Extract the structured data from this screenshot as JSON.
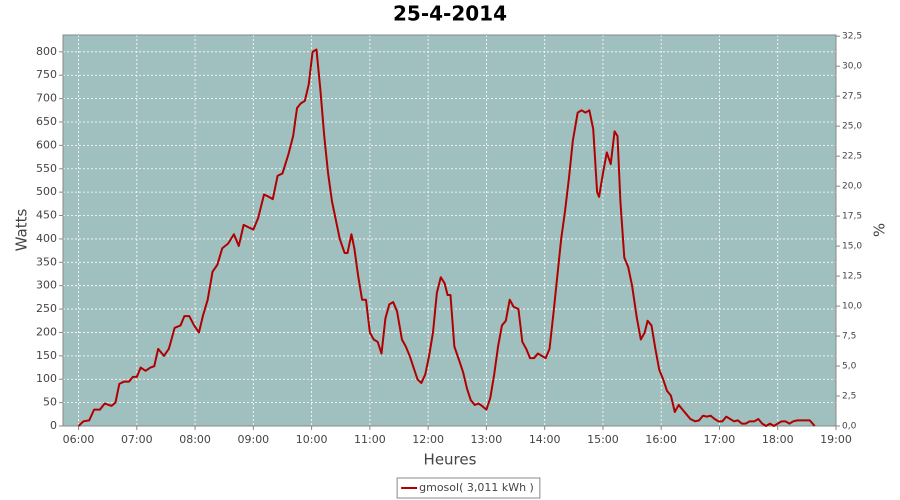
{
  "chart_data": {
    "type": "line",
    "title": "25-4-2014",
    "xlabel": "Heures",
    "ylabel": "Watts",
    "y2label": "%",
    "xlim": [
      "05:44",
      "19:00"
    ],
    "xticks": [
      "06:00",
      "07:00",
      "08:00",
      "09:00",
      "10:00",
      "11:00",
      "12:00",
      "13:00",
      "14:00",
      "15:00",
      "16:00",
      "17:00",
      "18:00",
      "19:00"
    ],
    "ylim": [
      0,
      836
    ],
    "yticks": [
      0,
      50,
      100,
      150,
      200,
      250,
      300,
      350,
      400,
      450,
      500,
      550,
      600,
      650,
      700,
      750,
      800
    ],
    "y2lim": [
      0,
      32.6
    ],
    "y2ticks": [
      {
        "value": 0,
        "label": "0,0"
      },
      {
        "value": 2.5,
        "label": "2,5"
      },
      {
        "value": 5,
        "label": "5,0"
      },
      {
        "value": 7.5,
        "label": "7,5"
      },
      {
        "value": 10,
        "label": "10,0"
      },
      {
        "value": 12.5,
        "label": "12,5"
      },
      {
        "value": 15,
        "label": "15,0"
      },
      {
        "value": 17.5,
        "label": "17,5"
      },
      {
        "value": 20,
        "label": "20,0"
      },
      {
        "value": 22.5,
        "label": "22,5"
      },
      {
        "value": 25,
        "label": "25,0"
      },
      {
        "value": 27.5,
        "label": "27,5"
      },
      {
        "value": 30,
        "label": "30,0"
      },
      {
        "value": 32.5,
        "label": "32,5"
      }
    ],
    "grid": true,
    "legend": "bottom",
    "background": "#a0c0bf",
    "x": [
      "06:00",
      "06:05",
      "06:11",
      "06:16",
      "06:22",
      "06:27",
      "06:34",
      "06:38",
      "06:42",
      "06:47",
      "06:52",
      "06:56",
      "07:00",
      "07:04",
      "07:09",
      "07:14",
      "07:18",
      "07:22",
      "07:28",
      "07:33",
      "07:39",
      "07:45",
      "07:49",
      "07:54",
      "07:59",
      "08:04",
      "08:08",
      "08:13",
      "08:18",
      "08:23",
      "08:28",
      "08:34",
      "08:40",
      "08:45",
      "08:50",
      "08:55",
      "09:00",
      "09:05",
      "09:11",
      "09:16",
      "09:20",
      "09:25",
      "09:30",
      "09:36",
      "09:41",
      "09:45",
      "09:49",
      "09:53",
      "09:57",
      "10:01",
      "10:05",
      "10:09",
      "10:13",
      "10:17",
      "10:21",
      "10:25",
      "10:29",
      "10:34",
      "10:37",
      "10:41",
      "10:44",
      "10:48",
      "10:52",
      "10:56",
      "11:00",
      "11:04",
      "11:08",
      "11:12",
      "11:16",
      "11:20",
      "11:24",
      "11:28",
      "11:33",
      "11:37",
      "11:41",
      "11:45",
      "11:49",
      "11:53",
      "11:57",
      "12:01",
      "12:05",
      "12:09",
      "12:13",
      "12:17",
      "12:20",
      "12:23",
      "12:27",
      "12:32",
      "12:36",
      "12:40",
      "12:44",
      "12:48",
      "12:52",
      "12:56",
      "13:00",
      "13:04",
      "13:08",
      "13:12",
      "13:16",
      "13:20",
      "13:24",
      "13:28",
      "13:33",
      "13:37",
      "13:41",
      "13:45",
      "13:49",
      "13:53",
      "13:57",
      "14:01",
      "14:05",
      "14:09",
      "14:13",
      "14:17",
      "14:21",
      "14:25",
      "14:29",
      "14:34",
      "14:38",
      "14:42",
      "14:46",
      "14:50",
      "14:54",
      "14:56",
      "15:00",
      "15:04",
      "15:08",
      "15:12",
      "15:15",
      "15:18",
      "15:22",
      "15:26",
      "15:30",
      "15:35",
      "15:39",
      "15:43",
      "15:46",
      "15:50",
      "15:54",
      "15:58",
      "16:02",
      "16:06",
      "16:10",
      "16:14",
      "16:18",
      "16:22",
      "16:26",
      "16:30",
      "16:35",
      "16:39",
      "16:43",
      "16:47",
      "16:51",
      "16:55",
      "16:59",
      "17:03",
      "17:07",
      "17:11",
      "17:15",
      "17:19",
      "17:23",
      "17:27",
      "17:31",
      "17:36",
      "17:40",
      "17:44",
      "17:48",
      "17:52",
      "17:56",
      "18:00",
      "18:04",
      "18:08",
      "18:12",
      "18:16",
      "18:20",
      "18:24",
      "18:28",
      "18:33",
      "18:36",
      "18:38"
    ],
    "series": [
      {
        "name": "gmosol( 3,011 kWh )",
        "color": "#b00000",
        "values": [
          0,
          10,
          12,
          35,
          35,
          48,
          43,
          50,
          90,
          95,
          95,
          105,
          105,
          125,
          118,
          125,
          128,
          165,
          150,
          165,
          210,
          215,
          235,
          235,
          215,
          200,
          235,
          270,
          330,
          345,
          380,
          390,
          410,
          385,
          430,
          425,
          420,
          445,
          495,
          490,
          485,
          535,
          540,
          580,
          620,
          680,
          690,
          695,
          730,
          800,
          805,
          720,
          620,
          540,
          480,
          440,
          400,
          370,
          370,
          410,
          380,
          320,
          270,
          270,
          200,
          185,
          180,
          155,
          230,
          260,
          265,
          245,
          185,
          170,
          150,
          125,
          100,
          92,
          110,
          150,
          200,
          285,
          318,
          305,
          280,
          280,
          170,
          140,
          115,
          80,
          55,
          45,
          48,
          42,
          35,
          60,
          110,
          170,
          215,
          225,
          270,
          255,
          250,
          180,
          165,
          145,
          145,
          155,
          150,
          145,
          165,
          240,
          320,
          400,
          460,
          530,
          610,
          670,
          675,
          670,
          675,
          635,
          500,
          490,
          540,
          585,
          560,
          630,
          620,
          480,
          360,
          340,
          300,
          230,
          185,
          200,
          225,
          215,
          165,
          120,
          100,
          75,
          65,
          30,
          45,
          35,
          25,
          15,
          10,
          12,
          22,
          20,
          22,
          15,
          10,
          10,
          20,
          15,
          10,
          12,
          5,
          5,
          10,
          10,
          15,
          5,
          0,
          5,
          0,
          5,
          10,
          10,
          5,
          10,
          12,
          12,
          12,
          12,
          5,
          0
        ]
      }
    ]
  }
}
